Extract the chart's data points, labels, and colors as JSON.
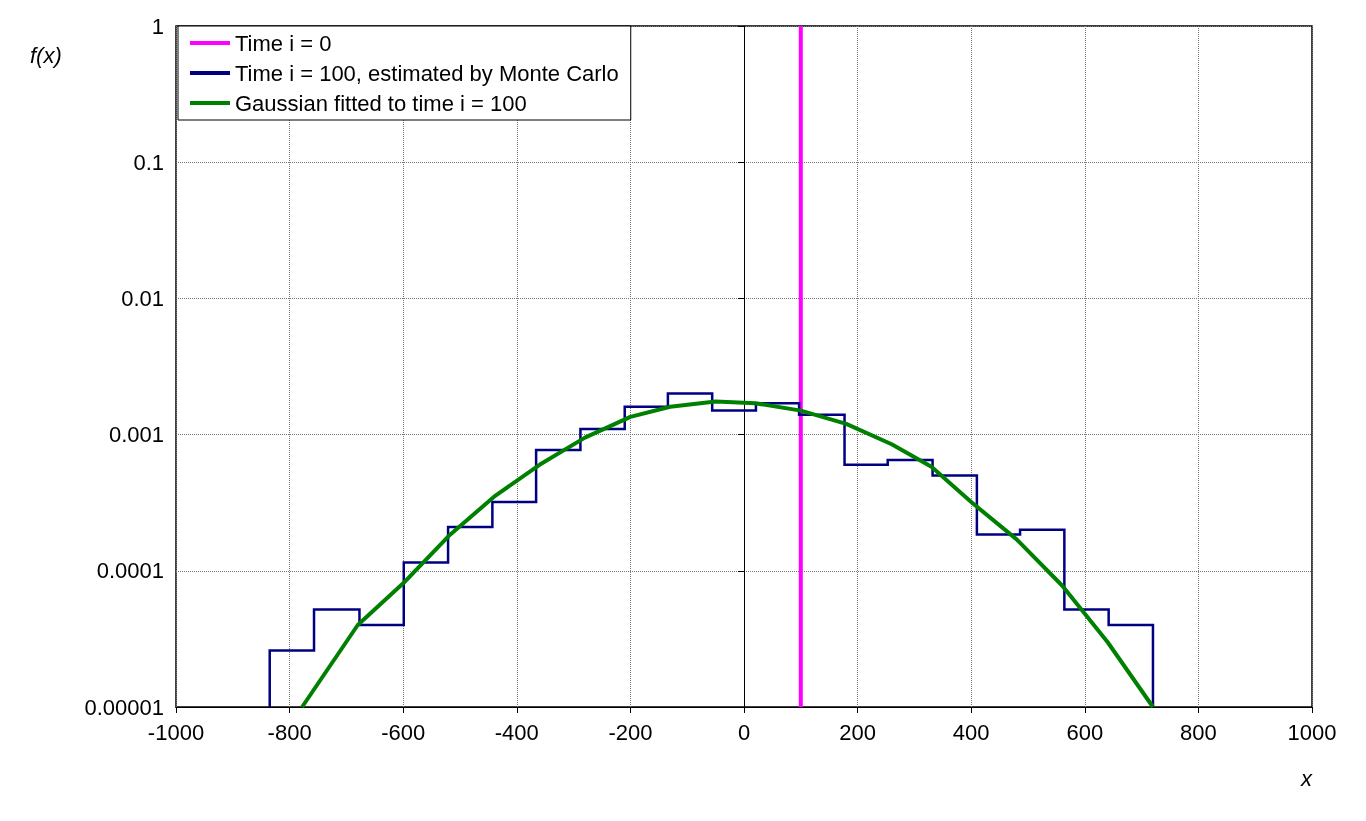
{
  "chart_data": {
    "type": "histogram",
    "xlabel": "x",
    "ylabel": "f(x)",
    "log": "y",
    "grid": true,
    "legend": "top left",
    "xlim": [
      -1000,
      1000
    ],
    "xticks": [
      -1000,
      -800,
      -600,
      -400,
      -200,
      0,
      200,
      400,
      600,
      800,
      1000
    ],
    "ylim": [
      1e-05,
      1
    ],
    "yticks": [
      {
        "value": 1e-05,
        "label": "0.00001"
      },
      0.0001,
      0.001,
      0.01,
      0.1,
      1
    ],
    "series": [
      {
        "type": "line",
        "name": "Time i = 0",
        "color": "#ff00ff",
        "x": [
          100,
          100
        ],
        "values": [
          1e-05,
          1
        ]
      },
      {
        "type": "histogram",
        "name": "Time i = 100, estimated by Monte Carlo",
        "color": "#000080",
        "bins": [
          -835,
          -757,
          -677,
          -599,
          -521,
          -443,
          -366,
          -288,
          -210,
          -134,
          -56,
          21,
          97,
          177,
          253,
          332,
          410,
          486,
          564,
          642,
          720
        ],
        "values": [
          2.6e-05,
          5.2e-05,
          4e-05,
          0.000115,
          0.00021,
          0.00032,
          0.00077,
          0.0011,
          0.0016,
          0.002,
          0.0015,
          0.0017,
          0.0014,
          0.0006,
          0.00065,
          0.0005,
          0.000185,
          0.0002,
          5.2e-05,
          4e-05
        ]
      },
      {
        "type": "line",
        "name": "Gaussian fitted to time i = 100",
        "color": "#008000",
        "x": [
          -778,
          -680,
          -600,
          -520,
          -440,
          -360,
          -280,
          -200,
          -130,
          -50,
          20,
          100,
          180,
          260,
          330,
          400,
          480,
          560,
          640,
          720
        ],
        "values": [
          1e-05,
          4e-05,
          8.1e-05,
          0.00018,
          0.00035,
          0.0006,
          0.00095,
          0.00135,
          0.0016,
          0.00175,
          0.0017,
          0.0015,
          0.0012,
          0.00085,
          0.00058,
          0.00032,
          0.00017,
          7.8e-05,
          3e-05,
          1e-05
        ]
      }
    ]
  }
}
